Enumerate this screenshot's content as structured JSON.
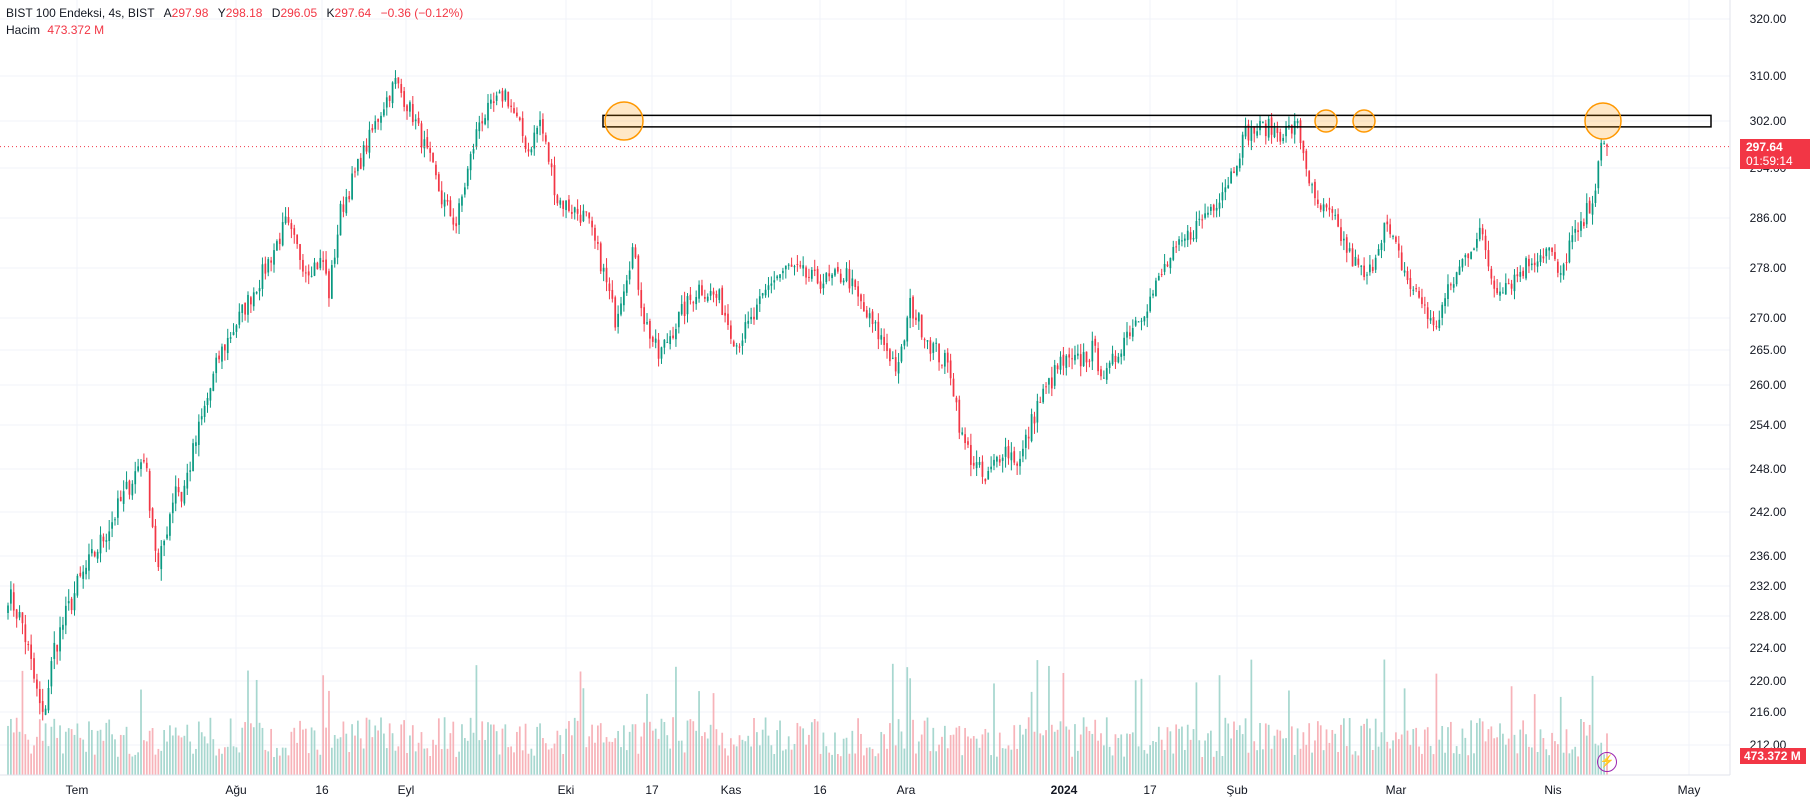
{
  "legend": {
    "symbol": "BIST 100 Endeksi, 4s, BIST",
    "open_label": "A",
    "open": "297.98",
    "high_label": "Y",
    "high": "298.18",
    "low_label": "D",
    "low": "296.05",
    "close_label": "K",
    "close": "297.64",
    "change": "−0.36 (−0.12%)",
    "volume_label": "Hacim",
    "volume": "473.372 M"
  },
  "price_tag": {
    "price": "297.64",
    "countdown": "01:59:14"
  },
  "volume_tag": "473.372 M",
  "colors": {
    "up": "#089981",
    "down": "#f23645",
    "up_volume": "#a7d7cf",
    "down_volume": "#f7b3b9",
    "grid": "#f0f3fa",
    "axis_text": "#131722",
    "price_line": "#f23645",
    "highlight": "#ff9800",
    "rectangle": "#000000"
  },
  "chart_data": {
    "type": "candlestick",
    "ylim": [
      212,
      320
    ],
    "y_ticks": [
      "320.00",
      "310.00",
      "302.00",
      "294.00",
      "286.00",
      "278.00",
      "270.00",
      "265.00",
      "260.00",
      "254.00",
      "248.00",
      "242.00",
      "236.00",
      "232.00",
      "228.00",
      "224.00",
      "220.00",
      "216.00",
      "212.00"
    ],
    "x_ticks": [
      "Tem",
      "Ağu",
      "16",
      "Eyl",
      "Eki",
      "17",
      "Kas",
      "16",
      "Ara",
      "2024",
      "17",
      "Şub",
      "Mar",
      "Nis",
      "May"
    ],
    "anchors": [
      [
        0,
        231
      ],
      [
        5,
        227
      ],
      [
        12,
        215
      ],
      [
        16,
        224
      ],
      [
        24,
        232
      ],
      [
        35,
        240
      ],
      [
        47,
        250
      ],
      [
        52,
        234
      ],
      [
        58,
        246
      ],
      [
        60,
        244
      ],
      [
        69,
        258
      ],
      [
        73,
        264
      ],
      [
        88,
        277
      ],
      [
        96,
        285
      ],
      [
        103,
        278
      ],
      [
        109,
        279
      ],
      [
        111,
        274
      ],
      [
        115,
        287
      ],
      [
        130,
        305
      ],
      [
        134,
        309
      ],
      [
        140,
        303
      ],
      [
        146,
        295
      ],
      [
        150,
        289
      ],
      [
        155,
        285
      ],
      [
        163,
        302
      ],
      [
        172,
        307
      ],
      [
        180,
        297
      ],
      [
        184,
        302
      ],
      [
        190,
        289
      ],
      [
        200,
        286
      ],
      [
        205,
        279
      ],
      [
        210,
        270
      ],
      [
        216,
        281
      ],
      [
        220,
        270
      ],
      [
        225,
        264
      ],
      [
        232,
        270
      ],
      [
        239,
        275
      ],
      [
        246,
        273
      ],
      [
        252,
        266
      ],
      [
        258,
        270
      ],
      [
        264,
        276
      ],
      [
        270,
        278
      ],
      [
        279,
        276
      ],
      [
        284,
        276
      ],
      [
        290,
        277
      ],
      [
        296,
        271
      ],
      [
        303,
        266
      ],
      [
        308,
        262
      ],
      [
        312,
        272
      ],
      [
        319,
        266
      ],
      [
        326,
        262
      ],
      [
        330,
        252
      ],
      [
        338,
        246
      ],
      [
        344,
        251
      ],
      [
        350,
        249
      ],
      [
        356,
        257
      ],
      [
        364,
        263
      ],
      [
        369,
        263
      ],
      [
        375,
        265
      ],
      [
        380,
        261
      ],
      [
        386,
        267
      ],
      [
        395,
        273
      ],
      [
        400,
        278
      ],
      [
        408,
        283
      ],
      [
        418,
        289
      ],
      [
        423,
        293
      ],
      [
        428,
        300
      ],
      [
        435,
        301
      ],
      [
        440,
        300
      ],
      [
        446,
        301
      ],
      [
        452,
        288
      ],
      [
        458,
        286
      ],
      [
        464,
        280
      ],
      [
        470,
        276
      ],
      [
        476,
        285
      ],
      [
        480,
        281
      ],
      [
        485,
        275
      ],
      [
        490,
        272
      ],
      [
        493,
        268
      ],
      [
        497,
        273
      ],
      [
        503,
        279
      ],
      [
        509,
        284
      ],
      [
        514,
        275
      ],
      [
        520,
        276
      ],
      [
        526,
        279
      ],
      [
        529,
        280
      ],
      [
        533,
        281
      ],
      [
        537,
        276
      ],
      [
        540,
        282
      ],
      [
        544,
        284
      ],
      [
        549,
        291
      ],
      [
        551,
        297
      ],
      [
        553,
        298
      ]
    ],
    "last": {
      "open": 297.98,
      "high": 298.18,
      "low": 296.05,
      "close": 297.64
    },
    "resistance_zone": [
      301,
      303
    ],
    "current_price": 297.64,
    "highlight_circles": [
      {
        "at": "Eki",
        "price": 302
      },
      {
        "at": "Şub",
        "price": 302
      },
      {
        "at": "Şub",
        "price": 302
      },
      {
        "at": "Nis",
        "price": 302
      }
    ]
  }
}
